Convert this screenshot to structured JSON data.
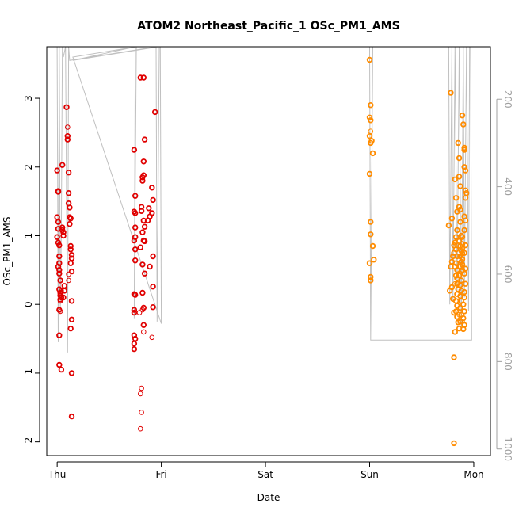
{
  "chart_data": {
    "type": "scatter",
    "title": "ATOM2 Northeast_Pacific_1 OSc_PM1_AMS",
    "xlabel": "Date",
    "ylabel": "OSc_PM1_AMS",
    "x_unit": "days",
    "xlim": [
      -0.1,
      4.16
    ],
    "ylim": [
      -2.2,
      3.75
    ],
    "x_ticks": [
      {
        "value": 0,
        "label": "Thu"
      },
      {
        "value": 1,
        "label": "Fri"
      },
      {
        "value": 2,
        "label": "Sat"
      },
      {
        "value": 3,
        "label": "Sun"
      },
      {
        "value": 4,
        "label": "Mon"
      }
    ],
    "y_ticks": [
      {
        "value": -2,
        "label": "-2"
      },
      {
        "value": -1,
        "label": "-1"
      },
      {
        "value": 0,
        "label": "0"
      },
      {
        "value": 1,
        "label": "1"
      },
      {
        "value": 2,
        "label": "2"
      },
      {
        "value": 3,
        "label": "3"
      }
    ],
    "y2_axis": {
      "inverted": true,
      "lim": [
        1015,
        80
      ],
      "ticks": [
        {
          "value": 200,
          "label": "200"
        },
        {
          "value": 400,
          "label": "400"
        },
        {
          "value": 600,
          "label": "600"
        },
        {
          "value": 800,
          "label": "800"
        },
        {
          "value": 1000,
          "label": "1000"
        }
      ]
    },
    "grid": false,
    "legend": "none",
    "colors": {
      "red": "#e00000",
      "orange": "#ff8c00",
      "line": "#c0c0c0",
      "frame": "#000000",
      "right_axis": "#a0a0a0"
    },
    "series": [
      {
        "color": "red",
        "points": [
          [
            0.0,
            1.95
          ],
          [
            0.01,
            1.65
          ],
          [
            0.01,
            1.64
          ],
          [
            0.0,
            1.27
          ],
          [
            0.01,
            1.2
          ],
          [
            0.01,
            1.1
          ],
          [
            0.0,
            0.98
          ],
          [
            0.01,
            0.9
          ],
          [
            0.02,
            0.86
          ],
          [
            0.02,
            0.7
          ],
          [
            0.02,
            0.6
          ],
          [
            0.01,
            0.55
          ],
          [
            0.02,
            0.5
          ],
          [
            0.02,
            0.45
          ],
          [
            0.03,
            0.35
          ],
          [
            0.02,
            0.22
          ],
          [
            0.03,
            0.17
          ],
          [
            0.03,
            0.13
          ],
          [
            0.04,
            0.1
          ],
          [
            0.03,
            0.07
          ],
          [
            0.02,
            -0.08
          ],
          [
            0.02,
            -0.45
          ],
          [
            0.02,
            -0.88
          ],
          [
            0.04,
            -0.95
          ],
          [
            0.05,
            2.03
          ],
          [
            0.06,
            1.05
          ],
          [
            0.05,
            1.08
          ],
          [
            0.05,
            1.12
          ],
          [
            0.06,
            1.0
          ],
          [
            0.07,
            0.27
          ],
          [
            0.07,
            0.2
          ],
          [
            0.06,
            0.1
          ],
          [
            0.09,
            2.87
          ],
          [
            0.1,
            2.45
          ],
          [
            0.1,
            2.4
          ],
          [
            0.11,
            1.92
          ],
          [
            0.11,
            1.62
          ],
          [
            0.11,
            1.47
          ],
          [
            0.12,
            1.41
          ],
          [
            0.12,
            1.27
          ],
          [
            0.13,
            1.25
          ],
          [
            0.12,
            1.17
          ],
          [
            0.13,
            0.85
          ],
          [
            0.13,
            0.8
          ],
          [
            0.14,
            0.72
          ],
          [
            0.14,
            0.67
          ],
          [
            0.13,
            0.6
          ],
          [
            0.14,
            0.48
          ],
          [
            0.14,
            0.05
          ],
          [
            0.14,
            -0.22
          ],
          [
            0.13,
            -0.35
          ],
          [
            0.14,
            -1.0
          ],
          [
            0.14,
            -1.63
          ],
          [
            0.74,
            2.25
          ],
          [
            0.75,
            1.58
          ],
          [
            0.74,
            1.35
          ],
          [
            0.75,
            1.33
          ],
          [
            0.75,
            1.12
          ],
          [
            0.75,
            0.98
          ],
          [
            0.74,
            0.93
          ],
          [
            0.75,
            0.8
          ],
          [
            0.75,
            0.64
          ],
          [
            0.74,
            0.15
          ],
          [
            0.75,
            0.14
          ],
          [
            0.74,
            -0.08
          ],
          [
            0.74,
            -0.12
          ],
          [
            0.74,
            -0.45
          ],
          [
            0.75,
            -0.5
          ],
          [
            0.74,
            -0.57
          ],
          [
            0.74,
            -0.65
          ],
          [
            0.8,
            3.3
          ],
          [
            0.83,
            3.3
          ],
          [
            0.81,
            1.42
          ],
          [
            0.81,
            1.36
          ],
          [
            0.82,
            1.85
          ],
          [
            0.83,
            1.88
          ],
          [
            0.82,
            1.8
          ],
          [
            0.83,
            2.08
          ],
          [
            0.84,
            2.4
          ],
          [
            0.83,
            1.22
          ],
          [
            0.84,
            1.13
          ],
          [
            0.82,
            1.05
          ],
          [
            0.83,
            0.93
          ],
          [
            0.84,
            0.92
          ],
          [
            0.8,
            0.83
          ],
          [
            0.82,
            0.58
          ],
          [
            0.84,
            0.45
          ],
          [
            0.82,
            0.17
          ],
          [
            0.83,
            -0.05
          ],
          [
            0.83,
            -0.3
          ],
          [
            0.87,
            1.22
          ],
          [
            0.88,
            1.4
          ],
          [
            0.89,
            0.55
          ],
          [
            0.89,
            1.28
          ],
          [
            0.91,
            1.7
          ],
          [
            0.92,
            1.52
          ],
          [
            0.91,
            1.33
          ],
          [
            0.92,
            0.7
          ],
          [
            0.92,
            0.26
          ],
          [
            0.92,
            -0.04
          ],
          [
            0.94,
            2.8
          ]
        ]
      },
      {
        "color": "red",
        "thin": true,
        "points": [
          [
            0.1,
            2.58
          ],
          [
            0.11,
            0.44
          ],
          [
            0.11,
            0.35
          ],
          [
            0.03,
            -0.1
          ],
          [
            0.03,
            0.05
          ],
          [
            0.04,
            0.2
          ],
          [
            0.79,
            -0.12
          ],
          [
            0.81,
            -1.22
          ],
          [
            0.8,
            -1.3
          ],
          [
            0.81,
            -1.57
          ],
          [
            0.8,
            -1.81
          ],
          [
            0.83,
            -0.4
          ],
          [
            0.82,
            -0.08
          ],
          [
            0.91,
            -0.48
          ]
        ]
      },
      {
        "color": "orange",
        "points": [
          [
            3.0,
            3.56
          ],
          [
            3.01,
            2.9
          ],
          [
            3.0,
            2.72
          ],
          [
            3.01,
            2.68
          ],
          [
            3.0,
            2.45
          ],
          [
            3.02,
            2.38
          ],
          [
            3.01,
            2.35
          ],
          [
            3.03,
            2.2
          ],
          [
            3.0,
            1.9
          ],
          [
            3.01,
            1.2
          ],
          [
            3.01,
            1.02
          ],
          [
            3.03,
            0.85
          ],
          [
            3.04,
            0.65
          ],
          [
            3.0,
            0.6
          ],
          [
            3.01,
            0.4
          ],
          [
            3.01,
            0.35
          ],
          [
            3.76,
            1.15
          ],
          [
            3.78,
            3.08
          ],
          [
            3.79,
            1.25
          ],
          [
            3.81,
            0.86
          ],
          [
            3.81,
            0.75
          ],
          [
            3.8,
            0.7
          ],
          [
            3.79,
            0.62
          ],
          [
            3.78,
            0.55
          ],
          [
            3.77,
            0.2
          ],
          [
            3.79,
            0.25
          ],
          [
            3.8,
            0.08
          ],
          [
            3.81,
            -0.12
          ],
          [
            3.82,
            -0.4
          ],
          [
            3.81,
            -0.77
          ],
          [
            3.81,
            -2.02
          ],
          [
            3.82,
            1.82
          ],
          [
            3.83,
            1.55
          ],
          [
            3.84,
            1.35
          ],
          [
            3.84,
            1.08
          ],
          [
            3.83,
            0.98
          ],
          [
            3.82,
            0.9
          ],
          [
            3.83,
            0.8
          ],
          [
            3.84,
            0.7
          ],
          [
            3.83,
            0.6
          ],
          [
            3.82,
            0.55
          ],
          [
            3.84,
            0.5
          ],
          [
            3.83,
            0.42
          ],
          [
            3.84,
            0.38
          ],
          [
            3.84,
            0.3
          ],
          [
            3.85,
            0.22
          ],
          [
            3.84,
            0.15
          ],
          [
            3.83,
            0.05
          ],
          [
            3.84,
            -0.02
          ],
          [
            3.83,
            -0.1
          ],
          [
            3.84,
            -0.18
          ],
          [
            3.85,
            -0.26
          ],
          [
            3.85,
            2.35
          ],
          [
            3.86,
            2.13
          ],
          [
            3.86,
            1.86
          ],
          [
            3.87,
            1.72
          ],
          [
            3.86,
            1.42
          ],
          [
            3.87,
            1.38
          ],
          [
            3.87,
            1.2
          ],
          [
            3.88,
            1.0
          ],
          [
            3.86,
            0.92
          ],
          [
            3.87,
            0.85
          ],
          [
            3.88,
            0.78
          ],
          [
            3.87,
            0.7
          ],
          [
            3.88,
            0.62
          ],
          [
            3.87,
            0.55
          ],
          [
            3.88,
            0.48
          ],
          [
            3.86,
            0.42
          ],
          [
            3.88,
            0.35
          ],
          [
            3.87,
            0.28
          ],
          [
            3.88,
            0.2
          ],
          [
            3.87,
            0.12
          ],
          [
            3.88,
            0.05
          ],
          [
            3.87,
            -0.05
          ],
          [
            3.88,
            -0.15
          ],
          [
            3.87,
            -0.25
          ],
          [
            3.86,
            -0.35
          ],
          [
            3.89,
            2.75
          ],
          [
            3.9,
            2.62
          ],
          [
            3.91,
            2.28
          ],
          [
            3.91,
            2.25
          ],
          [
            3.91,
            2.0
          ],
          [
            3.92,
            1.95
          ],
          [
            3.92,
            1.66
          ],
          [
            3.93,
            1.62
          ],
          [
            3.92,
            1.55
          ],
          [
            3.91,
            1.28
          ],
          [
            3.92,
            1.22
          ],
          [
            3.91,
            1.08
          ],
          [
            3.92,
            0.86
          ],
          [
            3.91,
            0.75
          ],
          [
            3.92,
            0.52
          ],
          [
            3.91,
            0.45
          ],
          [
            3.92,
            0.3
          ],
          [
            3.91,
            0.18
          ],
          [
            3.91,
            0.1
          ],
          [
            3.9,
            0.0
          ],
          [
            3.91,
            -0.1
          ],
          [
            3.9,
            -0.2
          ],
          [
            3.91,
            -0.3
          ],
          [
            3.9,
            -0.36
          ],
          [
            3.89,
            0.98
          ],
          [
            3.89,
            0.88
          ],
          [
            3.89,
            0.82
          ],
          [
            3.89,
            0.74
          ],
          [
            3.89,
            0.66
          ],
          [
            3.89,
            0.58
          ],
          [
            3.89,
            0.5
          ]
        ]
      },
      {
        "color": "orange",
        "thin": true,
        "points": [
          [
            3.01,
            2.52
          ],
          [
            3.82,
            0.3
          ],
          [
            3.86,
            -0.15
          ],
          [
            3.89,
            -0.25
          ]
        ]
      }
    ],
    "line_series": {
      "color": "line",
      "points": [
        [
          0.0,
          3.75
        ],
        [
          0.01,
          -0.55
        ],
        [
          0.02,
          3.75
        ],
        [
          0.03,
          -0.1
        ],
        [
          0.04,
          1.05
        ],
        [
          0.05,
          3.75
        ],
        [
          0.06,
          3.6
        ],
        [
          0.08,
          3.75
        ],
        [
          0.1,
          -0.7
        ],
        [
          0.11,
          3.75
        ],
        [
          0.12,
          3.55
        ],
        [
          0.95,
          3.75
        ],
        [
          0.96,
          -0.25
        ],
        [
          0.98,
          3.75
        ],
        [
          0.97,
          3.75
        ],
        [
          0.15,
          3.55
        ],
        [
          0.75,
          3.75
        ],
        [
          0.74,
          -0.2
        ],
        [
          0.76,
          3.75
        ],
        [
          0.15,
          3.6
        ],
        [
          1.0,
          -0.28
        ],
        [
          0.99,
          3.75
        ],
        [
          0.16,
          3.75
        ],
        [
          3.0,
          3.75
        ],
        [
          3.01,
          -0.5
        ],
        [
          3.03,
          3.75
        ],
        [
          3.01,
          -0.52
        ],
        [
          3.98,
          -0.52
        ],
        [
          3.97,
          3.75
        ],
        [
          3.76,
          3.75
        ],
        [
          3.77,
          0.0
        ],
        [
          3.79,
          3.75
        ],
        [
          3.8,
          0.05
        ],
        [
          3.82,
          3.75
        ],
        [
          3.84,
          0.2
        ],
        [
          3.86,
          3.75
        ],
        [
          3.88,
          -0.35
        ],
        [
          3.9,
          3.75
        ],
        [
          3.91,
          0.1
        ],
        [
          3.93,
          3.75
        ],
        [
          3.95,
          -0.1
        ],
        [
          3.96,
          3.75
        ]
      ]
    }
  }
}
